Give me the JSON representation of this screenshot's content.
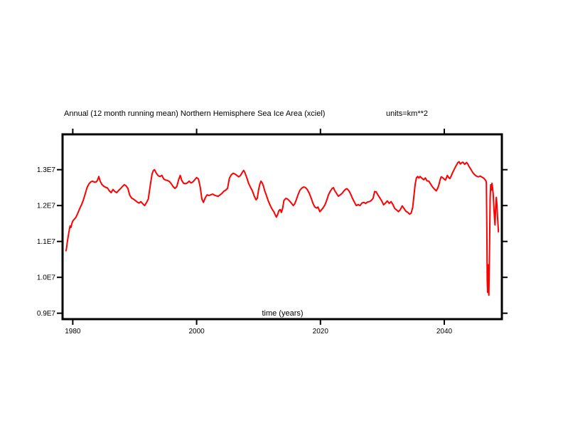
{
  "chart": {
    "title": "Annual (12 month running mean) Northern Hemisphere Sea Ice Area (xciel)",
    "units_label": "units=km**2",
    "xlabel": "time (years)"
  },
  "chart_data": {
    "type": "line",
    "title": "Annual (12 month running mean) Northern Hemisphere Sea Ice Area (xciel)",
    "units": "km**2",
    "xlabel": "time (years)",
    "ylabel": "",
    "legend": "none",
    "grid": false,
    "frame": "box-with-mirrored-outward-ticks",
    "line_color": "#ff0000",
    "axis_color": "#000000",
    "xlim": [
      1978.35,
      2049.3
    ],
    "ylim_e7": [
      0.8835,
      1.3985
    ],
    "xticks": [
      {
        "value": 1980,
        "label": "1980"
      },
      {
        "value": 2000,
        "label": "2000"
      },
      {
        "value": 2020,
        "label": "2020"
      },
      {
        "value": 2040,
        "label": "2040"
      }
    ],
    "yticks": [
      {
        "value": 0.9,
        "label": "0.9E7"
      },
      {
        "value": 1.0,
        "label": "1.0E7"
      },
      {
        "value": 1.1,
        "label": "1.1E7"
      },
      {
        "value": 1.2,
        "label": "1.2E7"
      },
      {
        "value": 1.3,
        "label": "1.3E7"
      }
    ],
    "points_units": "[year, sea ice area in 1e7 km**2]",
    "points": [
      [
        1978.9,
        1.074
      ],
      [
        1979.0,
        1.082
      ],
      [
        1979.1,
        1.096
      ],
      [
        1979.25,
        1.112
      ],
      [
        1979.4,
        1.128
      ],
      [
        1979.55,
        1.143
      ],
      [
        1979.7,
        1.139
      ],
      [
        1979.85,
        1.15
      ],
      [
        1980.0,
        1.157
      ],
      [
        1980.2,
        1.161
      ],
      [
        1980.5,
        1.167
      ],
      [
        1980.8,
        1.178
      ],
      [
        1981.1,
        1.191
      ],
      [
        1981.4,
        1.202
      ],
      [
        1981.7,
        1.215
      ],
      [
        1982.0,
        1.232
      ],
      [
        1982.3,
        1.25
      ],
      [
        1982.6,
        1.26
      ],
      [
        1982.9,
        1.266
      ],
      [
        1983.2,
        1.268
      ],
      [
        1983.5,
        1.265
      ],
      [
        1983.8,
        1.266
      ],
      [
        1984.0,
        1.271
      ],
      [
        1984.2,
        1.281
      ],
      [
        1984.4,
        1.269
      ],
      [
        1984.7,
        1.259
      ],
      [
        1985.0,
        1.254
      ],
      [
        1985.3,
        1.251
      ],
      [
        1985.6,
        1.249
      ],
      [
        1985.9,
        1.241
      ],
      [
        1986.2,
        1.236
      ],
      [
        1986.5,
        1.245
      ],
      [
        1986.8,
        1.239
      ],
      [
        1987.1,
        1.236
      ],
      [
        1987.4,
        1.242
      ],
      [
        1987.7,
        1.247
      ],
      [
        1988.0,
        1.253
      ],
      [
        1988.3,
        1.258
      ],
      [
        1988.6,
        1.255
      ],
      [
        1988.9,
        1.248
      ],
      [
        1989.2,
        1.229
      ],
      [
        1989.5,
        1.221
      ],
      [
        1989.8,
        1.218
      ],
      [
        1990.1,
        1.214
      ],
      [
        1990.4,
        1.21
      ],
      [
        1990.7,
        1.207
      ],
      [
        1991.0,
        1.211
      ],
      [
        1991.3,
        1.205
      ],
      [
        1991.6,
        1.2
      ],
      [
        1991.9,
        1.208
      ],
      [
        1992.2,
        1.218
      ],
      [
        1992.5,
        1.255
      ],
      [
        1992.8,
        1.288
      ],
      [
        1993.0,
        1.297
      ],
      [
        1993.2,
        1.3
      ],
      [
        1993.5,
        1.29
      ],
      [
        1993.8,
        1.283
      ],
      [
        1994.1,
        1.281
      ],
      [
        1994.4,
        1.284
      ],
      [
        1994.7,
        1.274
      ],
      [
        1995.0,
        1.271
      ],
      [
        1995.3,
        1.27
      ],
      [
        1995.6,
        1.267
      ],
      [
        1995.9,
        1.261
      ],
      [
        1996.2,
        1.253
      ],
      [
        1996.5,
        1.248
      ],
      [
        1996.8,
        1.253
      ],
      [
        1997.1,
        1.272
      ],
      [
        1997.35,
        1.284
      ],
      [
        1997.6,
        1.27
      ],
      [
        1997.9,
        1.262
      ],
      [
        1998.2,
        1.261
      ],
      [
        1998.5,
        1.263
      ],
      [
        1998.8,
        1.268
      ],
      [
        1999.1,
        1.263
      ],
      [
        1999.4,
        1.266
      ],
      [
        1999.7,
        1.272
      ],
      [
        2000.0,
        1.278
      ],
      [
        2000.3,
        1.274
      ],
      [
        2000.6,
        1.25
      ],
      [
        2000.85,
        1.218
      ],
      [
        2001.1,
        1.209
      ],
      [
        2001.4,
        1.222
      ],
      [
        2001.7,
        1.23
      ],
      [
        2002.0,
        1.228
      ],
      [
        2002.3,
        1.23
      ],
      [
        2002.6,
        1.232
      ],
      [
        2002.9,
        1.229
      ],
      [
        2003.2,
        1.227
      ],
      [
        2003.5,
        1.226
      ],
      [
        2003.8,
        1.23
      ],
      [
        2004.1,
        1.234
      ],
      [
        2004.4,
        1.24
      ],
      [
        2004.7,
        1.243
      ],
      [
        2005.0,
        1.248
      ],
      [
        2005.3,
        1.276
      ],
      [
        2005.6,
        1.286
      ],
      [
        2005.9,
        1.29
      ],
      [
        2006.2,
        1.288
      ],
      [
        2006.5,
        1.284
      ],
      [
        2006.8,
        1.28
      ],
      [
        2007.1,
        1.284
      ],
      [
        2007.4,
        1.293
      ],
      [
        2007.6,
        1.298
      ],
      [
        2007.8,
        1.292
      ],
      [
        2008.1,
        1.278
      ],
      [
        2008.4,
        1.262
      ],
      [
        2008.7,
        1.251
      ],
      [
        2009.0,
        1.241
      ],
      [
        2009.3,
        1.227
      ],
      [
        2009.6,
        1.216
      ],
      [
        2009.8,
        1.22
      ],
      [
        2010.0,
        1.243
      ],
      [
        2010.2,
        1.259
      ],
      [
        2010.4,
        1.268
      ],
      [
        2010.6,
        1.263
      ],
      [
        2010.8,
        1.254
      ],
      [
        2011.0,
        1.241
      ],
      [
        2011.3,
        1.227
      ],
      [
        2011.6,
        1.212
      ],
      [
        2011.9,
        1.2
      ],
      [
        2012.2,
        1.19
      ],
      [
        2012.5,
        1.182
      ],
      [
        2012.75,
        1.172
      ],
      [
        2012.9,
        1.168
      ],
      [
        2013.1,
        1.176
      ],
      [
        2013.3,
        1.186
      ],
      [
        2013.5,
        1.189
      ],
      [
        2013.7,
        1.181
      ],
      [
        2013.9,
        1.193
      ],
      [
        2014.1,
        1.214
      ],
      [
        2014.4,
        1.22
      ],
      [
        2014.7,
        1.218
      ],
      [
        2015.0,
        1.213
      ],
      [
        2015.3,
        1.207
      ],
      [
        2015.6,
        1.2
      ],
      [
        2015.85,
        1.205
      ],
      [
        2016.1,
        1.216
      ],
      [
        2016.4,
        1.231
      ],
      [
        2016.7,
        1.243
      ],
      [
        2017.0,
        1.249
      ],
      [
        2017.3,
        1.252
      ],
      [
        2017.6,
        1.25
      ],
      [
        2017.9,
        1.244
      ],
      [
        2018.2,
        1.234
      ],
      [
        2018.5,
        1.221
      ],
      [
        2018.8,
        1.206
      ],
      [
        2019.1,
        1.196
      ],
      [
        2019.4,
        1.193
      ],
      [
        2019.6,
        1.196
      ],
      [
        2019.9,
        1.183
      ],
      [
        2020.1,
        1.187
      ],
      [
        2020.4,
        1.193
      ],
      [
        2020.7,
        1.201
      ],
      [
        2021.0,
        1.214
      ],
      [
        2021.3,
        1.23
      ],
      [
        2021.6,
        1.24
      ],
      [
        2021.9,
        1.248
      ],
      [
        2022.1,
        1.25
      ],
      [
        2022.3,
        1.242
      ],
      [
        2022.6,
        1.234
      ],
      [
        2022.9,
        1.226
      ],
      [
        2023.2,
        1.23
      ],
      [
        2023.5,
        1.234
      ],
      [
        2023.8,
        1.241
      ],
      [
        2024.1,
        1.246
      ],
      [
        2024.3,
        1.247
      ],
      [
        2024.6,
        1.241
      ],
      [
        2024.9,
        1.231
      ],
      [
        2025.2,
        1.219
      ],
      [
        2025.5,
        1.209
      ],
      [
        2025.8,
        1.2
      ],
      [
        2026.1,
        1.203
      ],
      [
        2026.4,
        1.2
      ],
      [
        2026.7,
        1.207
      ],
      [
        2027.0,
        1.209
      ],
      [
        2027.3,
        1.206
      ],
      [
        2027.6,
        1.21
      ],
      [
        2027.9,
        1.211
      ],
      [
        2028.2,
        1.214
      ],
      [
        2028.5,
        1.22
      ],
      [
        2028.75,
        1.239
      ],
      [
        2029.0,
        1.238
      ],
      [
        2029.3,
        1.229
      ],
      [
        2029.6,
        1.221
      ],
      [
        2029.9,
        1.213
      ],
      [
        2030.2,
        1.202
      ],
      [
        2030.5,
        1.207
      ],
      [
        2030.8,
        1.213
      ],
      [
        2031.1,
        1.206
      ],
      [
        2031.4,
        1.211
      ],
      [
        2031.7,
        1.203
      ],
      [
        2032.0,
        1.192
      ],
      [
        2032.3,
        1.188
      ],
      [
        2032.6,
        1.183
      ],
      [
        2032.9,
        1.189
      ],
      [
        2033.2,
        1.199
      ],
      [
        2033.5,
        1.192
      ],
      [
        2033.8,
        1.184
      ],
      [
        2034.1,
        1.181
      ],
      [
        2034.4,
        1.176
      ],
      [
        2034.65,
        1.179
      ],
      [
        2034.9,
        1.195
      ],
      [
        2035.1,
        1.227
      ],
      [
        2035.3,
        1.26
      ],
      [
        2035.5,
        1.277
      ],
      [
        2035.7,
        1.281
      ],
      [
        2035.9,
        1.277
      ],
      [
        2036.1,
        1.281
      ],
      [
        2036.4,
        1.276
      ],
      [
        2036.7,
        1.272
      ],
      [
        2036.95,
        1.277
      ],
      [
        2037.2,
        1.269
      ],
      [
        2037.5,
        1.268
      ],
      [
        2037.8,
        1.26
      ],
      [
        2038.1,
        1.252
      ],
      [
        2038.4,
        1.246
      ],
      [
        2038.7,
        1.241
      ],
      [
        2038.9,
        1.247
      ],
      [
        2039.1,
        1.256
      ],
      [
        2039.3,
        1.27
      ],
      [
        2039.5,
        1.28
      ],
      [
        2039.7,
        1.278
      ],
      [
        2039.9,
        1.275
      ],
      [
        2040.2,
        1.271
      ],
      [
        2040.5,
        1.284
      ],
      [
        2040.7,
        1.278
      ],
      [
        2040.9,
        1.275
      ],
      [
        2041.1,
        1.282
      ],
      [
        2041.4,
        1.294
      ],
      [
        2041.7,
        1.304
      ],
      [
        2042.0,
        1.314
      ],
      [
        2042.2,
        1.32
      ],
      [
        2042.4,
        1.322
      ],
      [
        2042.6,
        1.316
      ],
      [
        2042.8,
        1.319
      ],
      [
        2043.0,
        1.321
      ],
      [
        2043.3,
        1.315
      ],
      [
        2043.6,
        1.32
      ],
      [
        2043.8,
        1.316
      ],
      [
        2044.0,
        1.309
      ],
      [
        2044.3,
        1.301
      ],
      [
        2044.6,
        1.292
      ],
      [
        2044.9,
        1.286
      ],
      [
        2045.2,
        1.282
      ],
      [
        2045.5,
        1.28
      ],
      [
        2045.8,
        1.282
      ],
      [
        2046.1,
        1.279
      ],
      [
        2046.4,
        1.276
      ],
      [
        2046.6,
        1.272
      ],
      [
        2046.75,
        1.268
      ],
      [
        2046.8,
        1.262
      ],
      [
        2046.87,
        1.15
      ],
      [
        2046.93,
        0.99
      ],
      [
        2047.0,
        0.958
      ],
      [
        2047.07,
        1.035
      ],
      [
        2047.13,
        1.005
      ],
      [
        2047.2,
        0.95
      ],
      [
        2047.3,
        1.07
      ],
      [
        2047.4,
        1.22
      ],
      [
        2047.5,
        1.258
      ],
      [
        2047.6,
        1.243
      ],
      [
        2047.7,
        1.262
      ],
      [
        2047.8,
        1.25
      ],
      [
        2047.9,
        1.232
      ],
      [
        2048.0,
        1.196
      ],
      [
        2048.1,
        1.17
      ],
      [
        2048.2,
        1.146
      ],
      [
        2048.3,
        1.196
      ],
      [
        2048.4,
        1.223
      ],
      [
        2048.5,
        1.205
      ],
      [
        2048.6,
        1.168
      ],
      [
        2048.7,
        1.14
      ],
      [
        2048.75,
        1.127
      ]
    ]
  }
}
